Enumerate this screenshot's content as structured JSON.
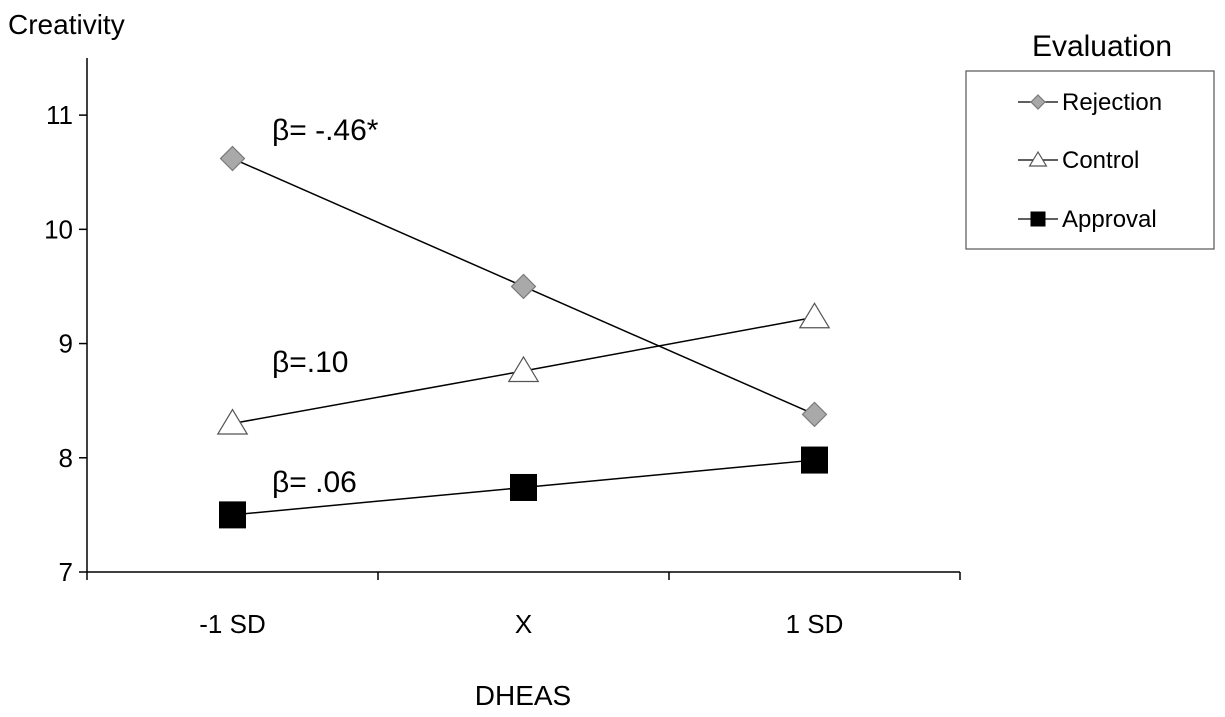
{
  "chart_data": {
    "type": "line",
    "title": "",
    "xlabel": "DHEAS",
    "ylabel": "Creativity",
    "categories": [
      "-1 SD",
      "X",
      "1 SD"
    ],
    "ylim": [
      7,
      11.5
    ],
    "yticks": [
      7,
      8,
      9,
      10,
      11
    ],
    "grid": false,
    "legend": {
      "title": "Evaluation",
      "placement": "top-right"
    },
    "series": [
      {
        "name": "Rejection",
        "values": [
          10.62,
          9.5,
          8.38
        ],
        "marker": "diamond",
        "color": "#a9a9a9"
      },
      {
        "name": "Control",
        "values": [
          8.3,
          8.76,
          9.23
        ],
        "marker": "triangle",
        "color": "#ffffff"
      },
      {
        "name": "Approval",
        "values": [
          7.5,
          7.74,
          7.98
        ],
        "marker": "square",
        "color": "#000000"
      }
    ],
    "annotations": [
      {
        "text": "β= -.46*",
        "series": "Rejection"
      },
      {
        "text": "β=.10",
        "series": "Control"
      },
      {
        "text": "β= .06",
        "series": "Approval"
      }
    ]
  }
}
